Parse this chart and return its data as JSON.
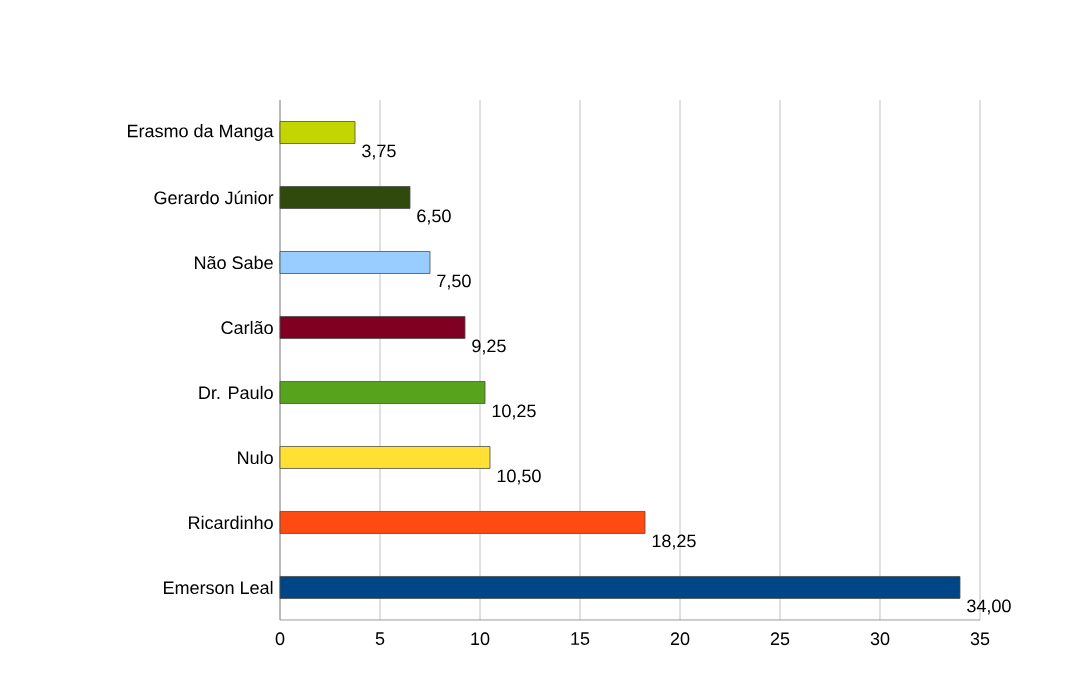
{
  "chart_data": {
    "type": "bar",
    "orientation": "horizontal",
    "categories": [
      "Erasmo da Manga",
      "Gerardo Júnior",
      "Não Sabe",
      "Carlão",
      "Dr. Paulo",
      "Nulo",
      "Ricardinho",
      "Emerson Leal"
    ],
    "values": [
      3.75,
      6.5,
      7.5,
      9.25,
      10.25,
      10.5,
      18.25,
      34.0
    ],
    "colors": [
      "#c3d600",
      "#2f4a0c",
      "#99ccff",
      "#7f0021",
      "#57a31c",
      "#ffe033",
      "#ff4a12",
      "#004586"
    ],
    "value_labels": [
      "3,75",
      "6,50",
      "7,50",
      "9,25",
      "10,25",
      "10,50",
      "18,25",
      "34,00"
    ],
    "xlim": [
      0,
      35
    ],
    "xticks": [
      0,
      5,
      10,
      15,
      20,
      25,
      30,
      35
    ],
    "grid": "x"
  }
}
